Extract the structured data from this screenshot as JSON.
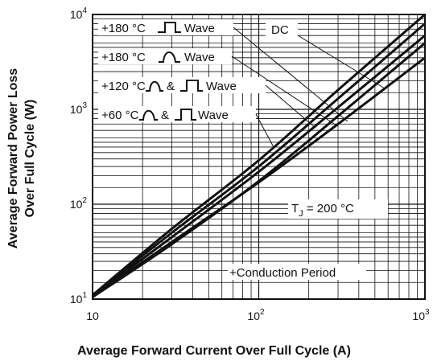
{
  "chart_data": {
    "type": "line",
    "x_scale": "log",
    "y_scale": "log",
    "xlim": [
      10,
      1000
    ],
    "ylim": [
      10,
      10000
    ],
    "grid": true,
    "xlabel": "Average Forward Current Over Full Cycle (A)",
    "ylabel_line1": "Average Forward Power Loss",
    "ylabel_line2": "Over Full Cycle (W)",
    "x_ticks": [
      {
        "base": "10",
        "exp": ""
      },
      {
        "base": "10",
        "exp": "2"
      },
      {
        "base": "10",
        "exp": "3"
      }
    ],
    "y_ticks": [
      {
        "base": "10",
        "exp": "1"
      },
      {
        "base": "10",
        "exp": "2"
      },
      {
        "base": "10",
        "exp": "3"
      },
      {
        "base": "10",
        "exp": "4"
      }
    ],
    "series": [
      {
        "name": "+180 °C Square Wave",
        "x": [
          10,
          30,
          100,
          300,
          1000
        ],
        "y": [
          10.5,
          40,
          170,
          700,
          3500
        ]
      },
      {
        "name": "+180 °C Sine Wave",
        "x": [
          10,
          30,
          100,
          300,
          1000
        ],
        "y": [
          10.5,
          38,
          175,
          850,
          5000
        ]
      },
      {
        "name": "+120 °C Sine & Square Wave",
        "x": [
          10,
          30,
          100,
          300,
          1000
        ],
        "y": [
          10.8,
          45,
          220,
          1050,
          6000
        ]
      },
      {
        "name": "+60 °C Sine & Square Wave",
        "x": [
          10,
          30,
          100,
          300,
          1000
        ],
        "y": [
          11,
          50,
          250,
          1300,
          8000
        ]
      },
      {
        "name": "DC",
        "x": [
          10,
          30,
          100,
          300,
          1000
        ],
        "y": [
          11,
          55,
          290,
          1600,
          10000
        ]
      }
    ],
    "annotations": {
      "label_180_sq": {
        "text_left": "+180 °C",
        "text_right": "Wave"
      },
      "label_180_sine": {
        "text_left": "+180 °C",
        "text_right": "Wave"
      },
      "label_120": {
        "text_left": "+120 °C",
        "text_mid": "&",
        "text_right": "Wave"
      },
      "label_60": {
        "text_left": "+60 °C",
        "text_mid": "&",
        "text_right": "Wave"
      },
      "label_dc": {
        "text": "DC"
      },
      "tj_prefix": "T",
      "tj_sub": "J",
      "tj_value": " = 200 °C",
      "conduction": "+Conduction Period"
    }
  }
}
